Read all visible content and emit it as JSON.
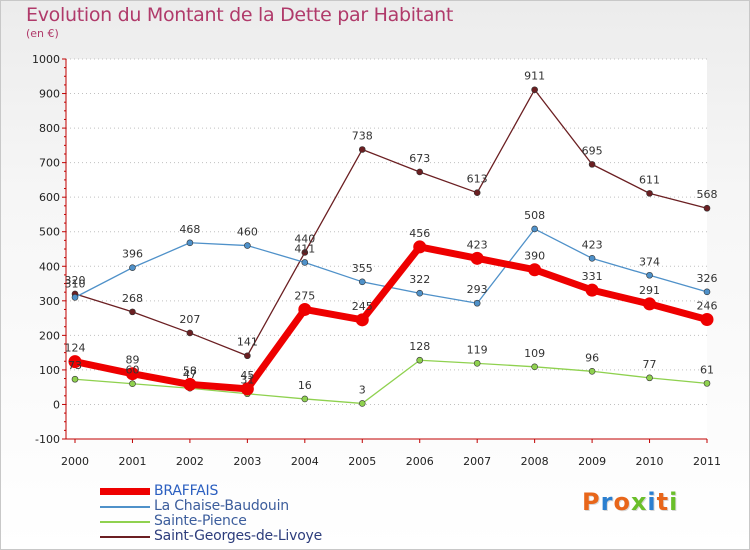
{
  "title": "Evolution du Montant de la Dette par Habitant",
  "subtitle": "(en €)",
  "logo": {
    "text": "Proxiti",
    "letter_colors": [
      "#e8661a",
      "#2b7fd0",
      "#e8661a",
      "#6abf2a",
      "#2b7fd0",
      "#e8661a",
      "#6abf2a"
    ]
  },
  "chart_data": {
    "type": "line",
    "title": "Evolution du Montant de la Dette par Habitant",
    "subtitle": "(en €)",
    "xlabel": "",
    "ylabel": "",
    "x": [
      "2000",
      "2001",
      "2002",
      "2003",
      "2004",
      "2005",
      "2006",
      "2007",
      "2008",
      "2009",
      "2010",
      "2011"
    ],
    "ylim": [
      -100,
      1000
    ],
    "yticks": [
      "-100",
      "0",
      "100",
      "200",
      "300",
      "400",
      "500",
      "600",
      "700",
      "800",
      "900",
      "1000"
    ],
    "grid": "dotted horizontal",
    "legend_position": "bottom-left",
    "series": [
      {
        "name": "BRAFFAIS",
        "color": "#ee0000",
        "values": [
          124,
          89,
          58,
          45,
          275,
          245,
          456,
          423,
          390,
          331,
          291,
          246
        ],
        "labels": [
          "124",
          "89",
          "58",
          "45",
          "275",
          "245",
          "456",
          "423",
          "390",
          "331",
          "291",
          "246"
        ]
      },
      {
        "name": "La Chaise-Baudouin",
        "color": "#4f91c9",
        "values": [
          310,
          396,
          468,
          460,
          411,
          355,
          322,
          293,
          508,
          423,
          374,
          326
        ],
        "labels": [
          "310",
          "396",
          "468",
          "460",
          "411",
          "355",
          "322",
          "293",
          "508",
          "423",
          "374",
          "326"
        ]
      },
      {
        "name": "Sainte-Pience",
        "color": "#8fd14f",
        "values": [
          73,
          60,
          47,
          31,
          16,
          3,
          128,
          119,
          109,
          96,
          77,
          61
        ],
        "labels": [
          "73",
          "60",
          "47",
          "31",
          "16",
          "3",
          "128",
          "119",
          "109",
          "96",
          "77",
          "61"
        ]
      },
      {
        "name": "Saint-Georges-de-Livoye",
        "color": "#6b1f22",
        "values": [
          320,
          268,
          207,
          141,
          440,
          738,
          673,
          613,
          911,
          695,
          611,
          568
        ],
        "labels": [
          "320",
          "268",
          "207",
          "141",
          "440",
          "738",
          "673",
          "613",
          "911",
          "695",
          "611",
          "568"
        ]
      }
    ]
  }
}
